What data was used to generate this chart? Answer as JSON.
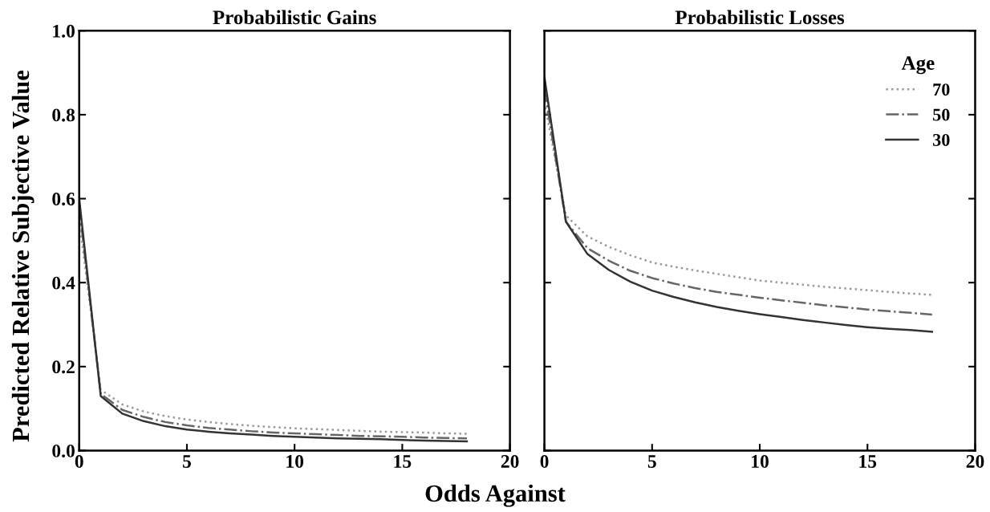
{
  "chart_data": [
    {
      "type": "line",
      "title": "Probabilistic Gains",
      "ylabel": "Predicted Relative Subjective Value",
      "xlabel": "Odds Against",
      "x": [
        0,
        1,
        2,
        3,
        4,
        5,
        6,
        7,
        8,
        9,
        10,
        11,
        12,
        13,
        14,
        15,
        16,
        17,
        18
      ],
      "series": [
        {
          "color": "#9a9a9a",
          "line_style": "dotted",
          "values": [
            0.55,
            0.145,
            0.11,
            0.093,
            0.082,
            0.074,
            0.068,
            0.063,
            0.059,
            0.056,
            0.053,
            0.051,
            0.049,
            0.047,
            0.045,
            0.044,
            0.043,
            0.041,
            0.04
          ]
        },
        {
          "color": "#666666",
          "line_style": "dashdot",
          "values": [
            0.58,
            0.135,
            0.097,
            0.08,
            0.068,
            0.06,
            0.054,
            0.05,
            0.046,
            0.043,
            0.041,
            0.039,
            0.037,
            0.035,
            0.034,
            0.033,
            0.031,
            0.03,
            0.029
          ]
        },
        {
          "color": "#333333",
          "line_style": "solid",
          "values": [
            0.6,
            0.13,
            0.088,
            0.07,
            0.058,
            0.05,
            0.045,
            0.041,
            0.038,
            0.035,
            0.033,
            0.031,
            0.029,
            0.028,
            0.027,
            0.025,
            0.024,
            0.023,
            0.022
          ]
        }
      ],
      "xlim": [
        0,
        20
      ],
      "xticks": [
        0,
        5,
        10,
        15,
        20
      ],
      "ylim": [
        0,
        1
      ],
      "yticks": [
        {
          "value": 0,
          "label": "0.0"
        },
        0.2,
        0.4,
        0.6,
        0.8,
        {
          "value": 1,
          "label": "1.0"
        }
      ],
      "grid": false,
      "legend": false,
      "marker": "none"
    },
    {
      "type": "line",
      "title": "Probabilistic Losses",
      "legend_title": "Age",
      "x": [
        0,
        1,
        2,
        3,
        4,
        5,
        6,
        7,
        8,
        9,
        10,
        11,
        12,
        13,
        14,
        15,
        16,
        17,
        18
      ],
      "series": [
        {
          "name": "70",
          "color": "#9a9a9a",
          "line_style": "dotted",
          "values": [
            0.83,
            0.56,
            0.51,
            0.485,
            0.465,
            0.448,
            0.438,
            0.429,
            0.421,
            0.413,
            0.405,
            0.4,
            0.395,
            0.39,
            0.386,
            0.382,
            0.378,
            0.374,
            0.371
          ]
        },
        {
          "name": "50",
          "color": "#666666",
          "line_style": "dashdot",
          "values": [
            0.86,
            0.545,
            0.482,
            0.452,
            0.428,
            0.411,
            0.398,
            0.387,
            0.378,
            0.371,
            0.364,
            0.358,
            0.352,
            0.346,
            0.341,
            0.336,
            0.332,
            0.328,
            0.324
          ]
        },
        {
          "name": "30",
          "color": "#333333",
          "line_style": "solid",
          "values": [
            0.89,
            0.545,
            0.468,
            0.43,
            0.402,
            0.381,
            0.366,
            0.353,
            0.342,
            0.333,
            0.325,
            0.318,
            0.311,
            0.305,
            0.299,
            0.294,
            0.29,
            0.287,
            0.283
          ]
        }
      ],
      "xlim": [
        0,
        20
      ],
      "xticks": [
        0,
        5,
        10,
        15,
        20
      ],
      "ylim": [
        0,
        1
      ],
      "yticks": [
        0,
        0.2,
        0.4,
        0.6,
        0.8,
        1
      ],
      "tick_labels": "x",
      "grid": false,
      "legend": "top right",
      "marker": "none"
    }
  ]
}
